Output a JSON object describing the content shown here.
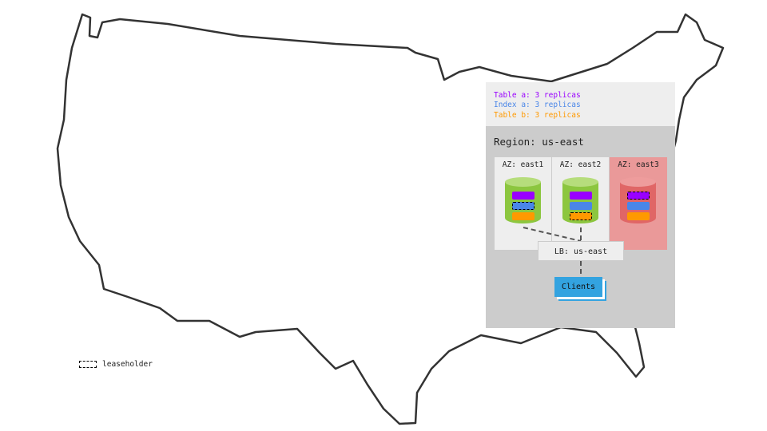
{
  "legend": {
    "items": [
      {
        "text": "Table a: 3 replicas",
        "color": "#9900ff"
      },
      {
        "text": "Index a: 3 replicas",
        "color": "#4a86e8"
      },
      {
        "text": "Table b: 3 replicas",
        "color": "#ff9900"
      }
    ]
  },
  "region": {
    "label": "Region: us-east"
  },
  "azs": [
    {
      "label": "AZ: east1",
      "status": "healthy",
      "leaseholder": "Index a"
    },
    {
      "label": "AZ: east2",
      "status": "healthy",
      "leaseholder": "Table b"
    },
    {
      "label": "AZ: east3",
      "status": "failed",
      "leaseholder": "Table a"
    }
  ],
  "load_balancer": {
    "label": "LB: us-east"
  },
  "clients": {
    "label": "Clients"
  },
  "key": {
    "leaseholder_label": "leaseholder"
  },
  "colors": {
    "healthy_db": "#8cc63f",
    "failed_db": "#e06666",
    "failed_zone": "#ea9999",
    "clients": "#33a3e0"
  }
}
